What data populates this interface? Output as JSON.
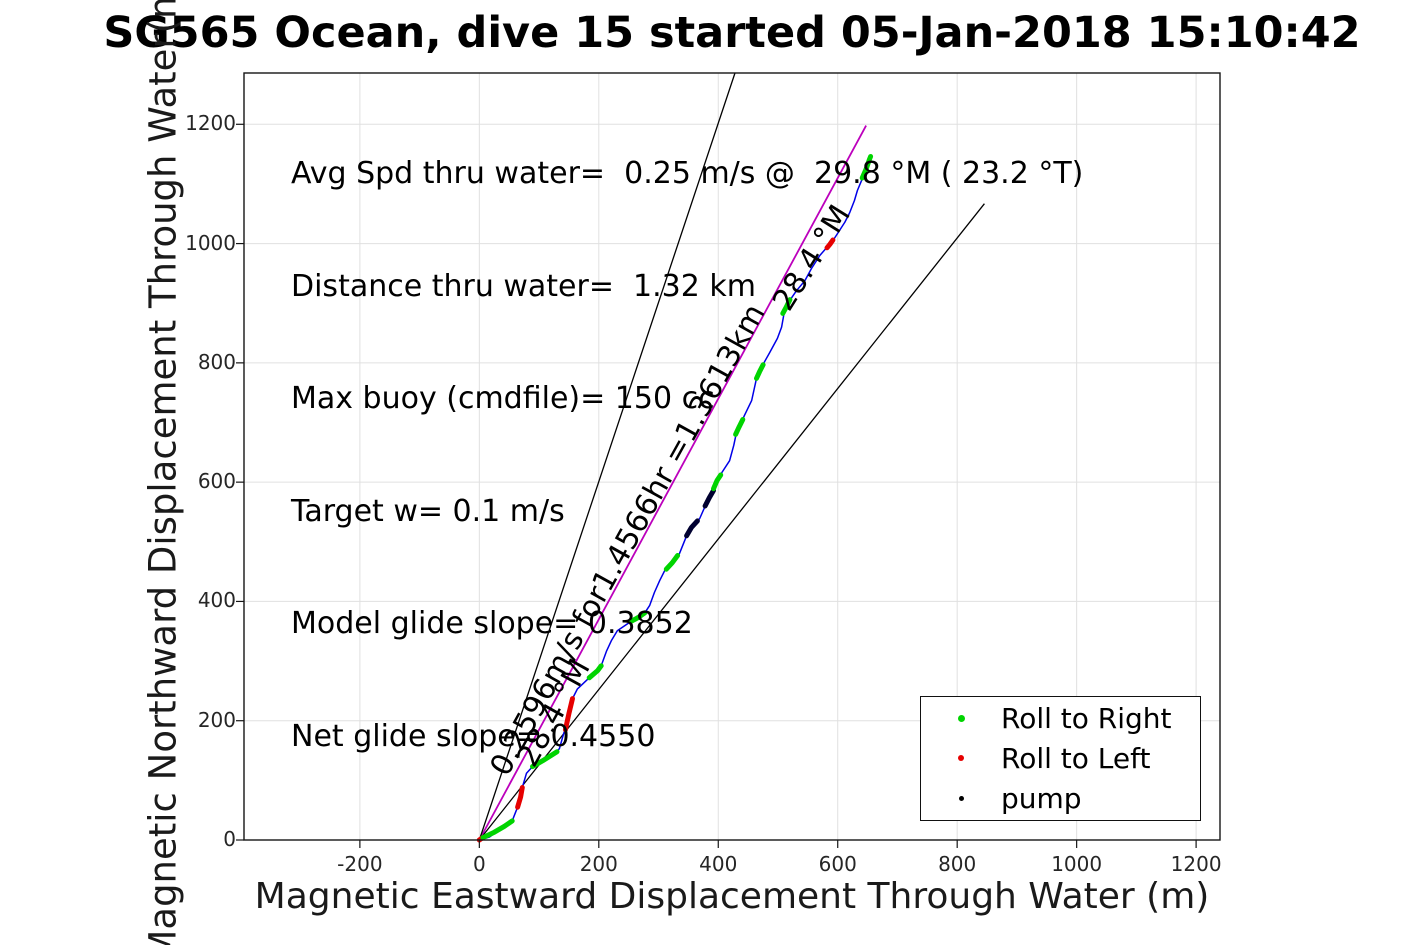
{
  "chart_data": {
    "type": "scatter",
    "title": "SG565 Ocean, dive 15 started 05-Jan-2018 15:10:42",
    "xlabel": "Magnetic Eastward Displacement Through Water (m)",
    "ylabel": "Magnetic Northward Displacement Through Water(m)",
    "xlim": [
      -394,
      1240
    ],
    "ylim": [
      0,
      1286
    ],
    "xticks": [
      -200,
      0,
      200,
      400,
      600,
      800,
      1000,
      1200
    ],
    "yticks": [
      0,
      200,
      400,
      600,
      800,
      1000,
      1200
    ],
    "grid": true,
    "annotation_lines": [
      "Avg Spd thru water=  0.25 m/s @  29.8 °M ( 23.2 °T)",
      "Distance thru water=  1.32 km",
      "Max buoy (cmdfile)= 150 cc",
      "Target w= 0.1 m/s",
      "Model glide slope= 0.3852",
      "Net glide slope= 0.4550"
    ],
    "line_labels": [
      {
        "text": "0.2596m/s for1.4566hr =1.3613km",
        "angle_deg": -61
      },
      {
        "text": "28.4 °M",
        "angle_deg": -61
      },
      {
        "text": "28.4 °M",
        "angle_deg": -58
      }
    ],
    "colors": {
      "grid": "#e0e0e0",
      "axis": "#151515",
      "track": "#0000e8",
      "avg_vector": "#bc00bc",
      "heading_bound": "#000000",
      "roll_right": "#00d400",
      "roll_left": "#e60000",
      "pump": "#000030"
    },
    "reference_lines": [
      {
        "name": "avg-velocity-vector",
        "color": "#bc00bc",
        "width": 1.8,
        "from": [
          0,
          0
        ],
        "to": [
          647.5,
          1197.8
        ]
      },
      {
        "name": "heading-bound-left",
        "color": "#000000",
        "width": 1.3,
        "from": [
          0,
          0
        ],
        "to": [
          428,
          1286
        ]
      },
      {
        "name": "heading-bound-right",
        "color": "#000000",
        "width": 1.3,
        "from": [
          0,
          0
        ],
        "to": [
          845.6,
          1066.9
        ]
      }
    ],
    "track": {
      "color": "#0000e8",
      "points": [
        [
          0,
          0
        ],
        [
          17,
          5
        ],
        [
          42,
          23
        ],
        [
          55,
          32
        ],
        [
          60,
          45
        ],
        [
          64,
          55
        ],
        [
          69,
          72
        ],
        [
          72,
          88
        ],
        [
          79,
          112
        ],
        [
          89,
          123
        ],
        [
          106,
          133
        ],
        [
          127,
          146
        ],
        [
          134,
          153
        ],
        [
          139,
          171
        ],
        [
          144,
          188
        ],
        [
          151,
          217
        ],
        [
          156,
          237
        ],
        [
          164,
          253
        ],
        [
          184,
          272
        ],
        [
          198,
          284
        ],
        [
          204,
          292
        ],
        [
          213,
          317
        ],
        [
          221,
          334
        ],
        [
          231,
          351
        ],
        [
          253,
          366
        ],
        [
          266,
          373
        ],
        [
          277,
          381
        ],
        [
          285,
          393
        ],
        [
          293,
          415
        ],
        [
          302,
          435
        ],
        [
          310,
          451
        ],
        [
          323,
          465
        ],
        [
          335,
          480
        ],
        [
          347,
          510
        ],
        [
          355,
          524
        ],
        [
          369,
          539
        ],
        [
          380,
          564
        ],
        [
          389,
          582
        ],
        [
          395,
          599
        ],
        [
          406,
          616
        ],
        [
          419,
          636
        ],
        [
          426,
          662
        ],
        [
          431,
          686
        ],
        [
          436,
          695
        ],
        [
          444,
          712
        ],
        [
          456,
          737
        ],
        [
          464,
          774
        ],
        [
          473,
          794
        ],
        [
          486,
          817
        ],
        [
          499,
          841
        ],
        [
          506,
          860
        ],
        [
          511,
          888
        ],
        [
          520,
          905
        ],
        [
          531,
          921
        ],
        [
          545,
          938
        ],
        [
          556,
          958
        ],
        [
          570,
          980
        ],
        [
          582,
          994
        ],
        [
          592,
          1005
        ],
        [
          603,
          1022
        ],
        [
          612,
          1036
        ],
        [
          620,
          1052
        ],
        [
          628,
          1072
        ],
        [
          633,
          1089
        ],
        [
          640,
          1106
        ],
        [
          647,
          1123
        ],
        [
          652,
          1140
        ],
        [
          655,
          1146
        ]
      ]
    },
    "segments": [
      {
        "type": "roll_left",
        "points": [
          [
            0,
            0
          ],
          [
            6,
            4
          ]
        ]
      },
      {
        "type": "roll_right",
        "points": [
          [
            6,
            4
          ],
          [
            25,
            13
          ],
          [
            42,
            23
          ],
          [
            55,
            32
          ]
        ]
      },
      {
        "type": "roll_left",
        "points": [
          [
            64,
            55
          ],
          [
            69,
            72
          ],
          [
            72,
            88
          ]
        ]
      },
      {
        "type": "roll_right",
        "points": [
          [
            89,
            123
          ],
          [
            106,
            133
          ],
          [
            130,
            148
          ]
        ]
      },
      {
        "type": "roll_left",
        "points": [
          [
            144,
            185
          ],
          [
            150,
            212
          ],
          [
            156,
            237
          ]
        ]
      },
      {
        "type": "roll_right",
        "points": [
          [
            184,
            272
          ],
          [
            198,
            284
          ],
          [
            204,
            292
          ]
        ]
      },
      {
        "type": "roll_right",
        "points": [
          [
            253,
            366
          ],
          [
            266,
            373
          ],
          [
            277,
            381
          ]
        ]
      },
      {
        "type": "roll_right",
        "points": [
          [
            313,
            454
          ],
          [
            323,
            465
          ],
          [
            332,
            477
          ]
        ]
      },
      {
        "type": "pump",
        "points": [
          [
            347,
            510
          ],
          [
            355,
            524
          ],
          [
            365,
            535
          ]
        ]
      },
      {
        "type": "pump",
        "points": [
          [
            378,
            560
          ],
          [
            385,
            574
          ],
          [
            392,
            586
          ]
        ]
      },
      {
        "type": "roll_right",
        "points": [
          [
            392,
            589
          ],
          [
            398,
            603
          ],
          [
            404,
            612
          ]
        ]
      },
      {
        "type": "roll_right",
        "points": [
          [
            429,
            680
          ],
          [
            435,
            693
          ],
          [
            441,
            705
          ]
        ]
      },
      {
        "type": "roll_right",
        "points": [
          [
            464,
            774
          ],
          [
            469,
            785
          ],
          [
            475,
            797
          ]
        ]
      },
      {
        "type": "roll_right",
        "points": [
          [
            508,
            883
          ],
          [
            514,
            894
          ],
          [
            520,
            906
          ]
        ]
      },
      {
        "type": "roll_left",
        "points": [
          [
            582,
            993
          ],
          [
            587,
            999
          ],
          [
            592,
            1006
          ]
        ]
      },
      {
        "type": "roll_right",
        "points": [
          [
            641,
            1110
          ],
          [
            648,
            1126
          ],
          [
            653,
            1141
          ],
          [
            655,
            1146
          ]
        ]
      }
    ],
    "legend": {
      "position": "lower-right",
      "items": [
        {
          "label": "Roll to Right",
          "color": "#00d400",
          "marker": "dot"
        },
        {
          "label": "Roll to Left",
          "color": "#e60000",
          "marker": "dot"
        },
        {
          "label": "pump",
          "color": "#000000",
          "marker": "dot"
        }
      ]
    }
  }
}
